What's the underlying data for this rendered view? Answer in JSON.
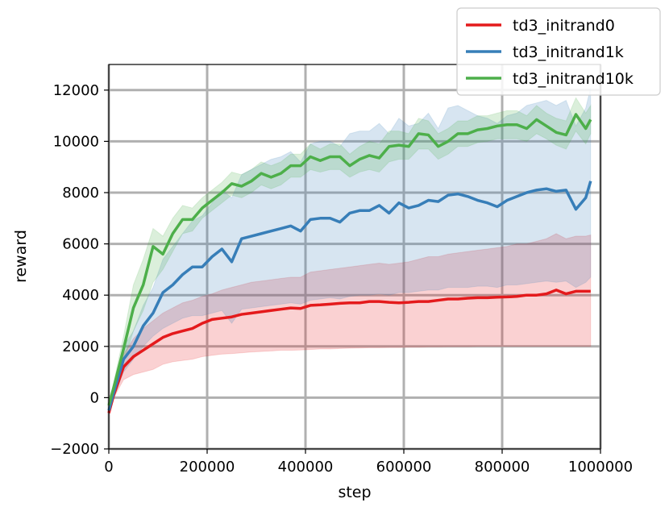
{
  "chart_data": {
    "type": "line",
    "title": "",
    "xlabel": "step",
    "ylabel": "reward",
    "xlim": [
      0,
      1000000
    ],
    "ylim": [
      -2000,
      13000
    ],
    "xticks": [
      0,
      200000,
      400000,
      600000,
      800000,
      1000000
    ],
    "xtick_labels": [
      "0",
      "200000",
      "400000",
      "600000",
      "800000",
      "1000000"
    ],
    "yticks": [
      -2000,
      0,
      2000,
      4000,
      6000,
      8000,
      10000,
      12000
    ],
    "ytick_labels": [
      "−2000",
      "0",
      "2000",
      "4000",
      "6000",
      "8000",
      "10000",
      "12000"
    ],
    "grid": true,
    "legend_position": "top-right",
    "x": [
      0,
      10000,
      30000,
      50000,
      70000,
      90000,
      110000,
      130000,
      150000,
      170000,
      190000,
      210000,
      230000,
      250000,
      270000,
      290000,
      310000,
      330000,
      350000,
      370000,
      390000,
      410000,
      430000,
      450000,
      470000,
      490000,
      510000,
      530000,
      550000,
      570000,
      590000,
      610000,
      630000,
      650000,
      670000,
      690000,
      710000,
      730000,
      750000,
      770000,
      790000,
      810000,
      830000,
      850000,
      870000,
      890000,
      910000,
      930000,
      950000,
      970000,
      980000
    ],
    "series": [
      {
        "name": "td3_initrand0",
        "color": "#e41a1c",
        "mean": [
          -600,
          100,
          1200,
          1600,
          1850,
          2100,
          2350,
          2500,
          2600,
          2700,
          2900,
          3050,
          3100,
          3150,
          3250,
          3300,
          3350,
          3400,
          3450,
          3500,
          3480,
          3600,
          3620,
          3650,
          3680,
          3700,
          3700,
          3750,
          3750,
          3720,
          3700,
          3720,
          3750,
          3750,
          3800,
          3850,
          3850,
          3880,
          3900,
          3900,
          3920,
          3930,
          3950,
          4000,
          4000,
          4050,
          4200,
          4050,
          4150,
          4150,
          4150
        ],
        "lower": [
          -700,
          0,
          700,
          900,
          1000,
          1100,
          1300,
          1400,
          1450,
          1500,
          1600,
          1650,
          1700,
          1720,
          1750,
          1780,
          1800,
          1820,
          1850,
          1850,
          1860,
          1880,
          1900,
          1900,
          1920,
          1930,
          1940,
          1950,
          1950,
          1960,
          1960,
          1970,
          1970,
          1980,
          1980,
          1990,
          1990,
          1990,
          2000,
          2000,
          2000,
          2000,
          2000,
          2000,
          2000,
          2000,
          2000,
          2000,
          2000,
          2000,
          2000
        ],
        "upper": [
          -500,
          300,
          1700,
          2300,
          2700,
          3000,
          3300,
          3500,
          3700,
          3800,
          3950,
          4050,
          4200,
          4300,
          4400,
          4500,
          4550,
          4600,
          4650,
          4700,
          4700,
          4900,
          4950,
          5000,
          5050,
          5100,
          5150,
          5200,
          5250,
          5200,
          5250,
          5300,
          5400,
          5500,
          5500,
          5600,
          5650,
          5700,
          5750,
          5800,
          5850,
          5900,
          6000,
          6000,
          6100,
          6200,
          6400,
          6200,
          6300,
          6300,
          6350
        ]
      },
      {
        "name": "td3_initrand1k",
        "color": "#377eb8",
        "mean": [
          -500,
          200,
          1500,
          2000,
          2800,
          3300,
          4100,
          4400,
          4800,
          5100,
          5100,
          5500,
          5800,
          5300,
          6200,
          6300,
          6400,
          6500,
          6600,
          6700,
          6500,
          6950,
          7000,
          7000,
          6850,
          7200,
          7300,
          7300,
          7500,
          7200,
          7600,
          7400,
          7500,
          7700,
          7650,
          7900,
          7950,
          7850,
          7700,
          7600,
          7450,
          7700,
          7850,
          8000,
          8100,
          8150,
          8050,
          8100,
          7350,
          7800,
          8450
        ],
        "lower": [
          -600,
          0,
          1000,
          1500,
          2000,
          2400,
          2700,
          2900,
          3100,
          3200,
          3200,
          3300,
          3400,
          2900,
          3450,
          3500,
          3550,
          3600,
          3650,
          3700,
          3650,
          3800,
          3850,
          3900,
          3850,
          3950,
          4000,
          4000,
          4050,
          4000,
          4100,
          4100,
          4150,
          4200,
          4200,
          4300,
          4300,
          4300,
          4350,
          4350,
          4300,
          4400,
          4400,
          4450,
          4500,
          4550,
          4500,
          4550,
          4300,
          4500,
          4700
        ],
        "upper": [
          -400,
          400,
          2000,
          2600,
          3600,
          4300,
          5400,
          5900,
          6400,
          6900,
          7100,
          7600,
          8100,
          7800,
          8700,
          8900,
          9100,
          9300,
          9400,
          9600,
          9200,
          9900,
          10000,
          10000,
          9800,
          10300,
          10400,
          10400,
          10700,
          10300,
          10900,
          10600,
          10700,
          11100,
          10500,
          11300,
          11400,
          11200,
          11000,
          10900,
          10700,
          11000,
          11100,
          11400,
          11500,
          11600,
          11400,
          11600,
          10600,
          11300,
          12100
        ]
      },
      {
        "name": "td3_initrand10k",
        "color": "#4daf4a",
        "mean": [
          -300,
          400,
          1900,
          3500,
          4400,
          5900,
          5600,
          6400,
          6950,
          6950,
          7400,
          7700,
          8000,
          8350,
          8250,
          8450,
          8750,
          8600,
          8750,
          9050,
          9050,
          9400,
          9250,
          9400,
          9400,
          9050,
          9300,
          9450,
          9350,
          9800,
          9850,
          9800,
          10300,
          10250,
          9800,
          10000,
          10300,
          10300,
          10450,
          10500,
          10600,
          10650,
          10650,
          10500,
          10850,
          10600,
          10350,
          10250,
          11050,
          10500,
          10850
        ],
        "lower": [
          -400,
          200,
          1400,
          2600,
          3400,
          4500,
          5000,
          5700,
          6400,
          6500,
          7000,
          7300,
          7600,
          7900,
          7800,
          8000,
          8300,
          8150,
          8300,
          8600,
          8600,
          8900,
          8800,
          8900,
          8900,
          8600,
          8800,
          8900,
          8800,
          9200,
          9300,
          9300,
          9700,
          9700,
          9300,
          9500,
          9800,
          9800,
          9950,
          10000,
          10100,
          10100,
          10100,
          10000,
          10300,
          10100,
          9850,
          9700,
          10400,
          9900,
          10300
        ],
        "upper": [
          -200,
          600,
          2400,
          4400,
          5400,
          6600,
          6300,
          7000,
          7500,
          7400,
          7800,
          8100,
          8400,
          8800,
          8700,
          8900,
          9200,
          9050,
          9200,
          9500,
          9500,
          9900,
          9700,
          9900,
          9900,
          9500,
          9800,
          10000,
          9900,
          10400,
          10400,
          10300,
          10900,
          10800,
          10300,
          10500,
          10800,
          10800,
          11000,
          11000,
          11100,
          11200,
          11200,
          11000,
          11400,
          11100,
          10900,
          10800,
          11700,
          11100,
          11400
        ]
      }
    ]
  }
}
